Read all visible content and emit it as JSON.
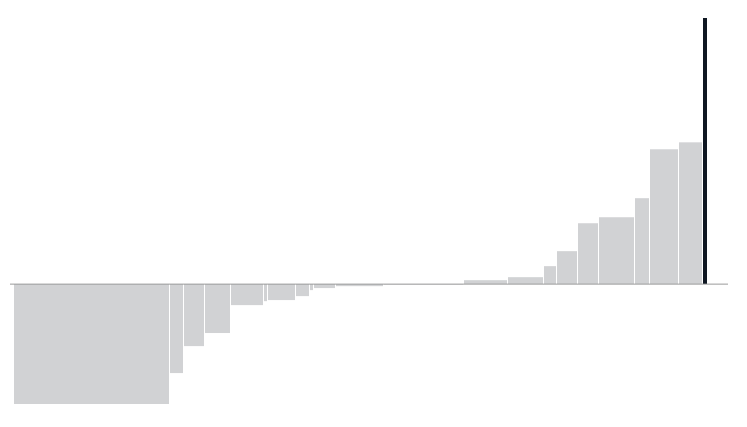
{
  "chart_data": {
    "type": "bar",
    "title": "",
    "xlabel": "",
    "ylabel": "",
    "bar_color": "#d1d2d4",
    "highlight_color": "#0f1722",
    "axis_color": "#9a9a9a",
    "ylim": [
      -100,
      222
    ],
    "bars": [
      {
        "width": 156,
        "value": -100.0
      },
      {
        "width": 14,
        "value": -74.2
      },
      {
        "width": 21,
        "value": -51.7
      },
      {
        "width": 26,
        "value": -40.8
      },
      {
        "width": 33,
        "value": -17.5
      },
      {
        "width": 4,
        "value": -14.2
      },
      {
        "width": 28,
        "value": -13.3
      },
      {
        "width": 14,
        "value": -10.0
      },
      {
        "width": 4,
        "value": -5.0
      },
      {
        "width": 22,
        "value": -3.3
      },
      {
        "width": 48,
        "value": -1.7
      },
      {
        "width": 80,
        "value": 0.0
      },
      {
        "width": 44,
        "value": 3.3
      },
      {
        "width": 36,
        "value": 5.8
      },
      {
        "width": 13,
        "value": 15.0
      },
      {
        "width": 21,
        "value": 27.5
      },
      {
        "width": 21,
        "value": 50.8
      },
      {
        "width": 36,
        "value": 55.8
      },
      {
        "width": 15,
        "value": 71.7
      },
      {
        "width": 29,
        "value": 112.5
      },
      {
        "width": 24,
        "value": 118.3
      },
      {
        "width": 4,
        "value": 222.0,
        "highlight": true
      }
    ]
  }
}
